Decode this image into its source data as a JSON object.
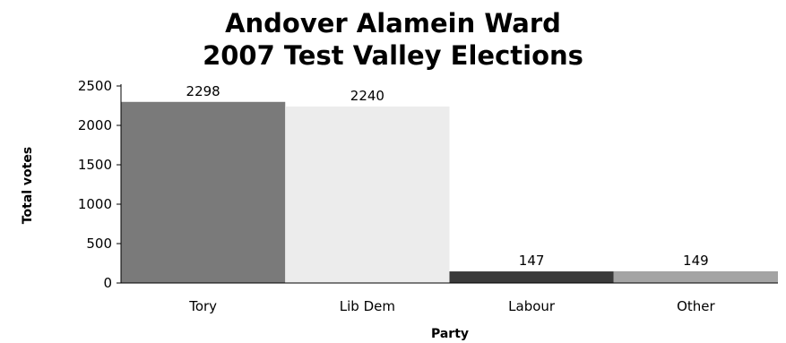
{
  "chart_data": {
    "type": "bar",
    "title": [
      "Andover Alamein Ward",
      "2007 Test Valley Elections"
    ],
    "xlabel": "Party",
    "ylabel": "Total votes",
    "categories": [
      "Tory",
      "Lib Dem",
      "Labour",
      "Other"
    ],
    "values": [
      2298,
      2240,
      147,
      149
    ],
    "ylim": [
      0,
      2500
    ],
    "yticks": [
      0,
      500,
      1000,
      1500,
      2000,
      2500
    ],
    "data_labels": [
      "2298",
      "2240",
      "147",
      "149"
    ],
    "colors": [
      "#7a7a7a",
      "#ececec",
      "#3a3a3a",
      "#a4a4a4"
    ],
    "grid": false,
    "legend": "none"
  }
}
